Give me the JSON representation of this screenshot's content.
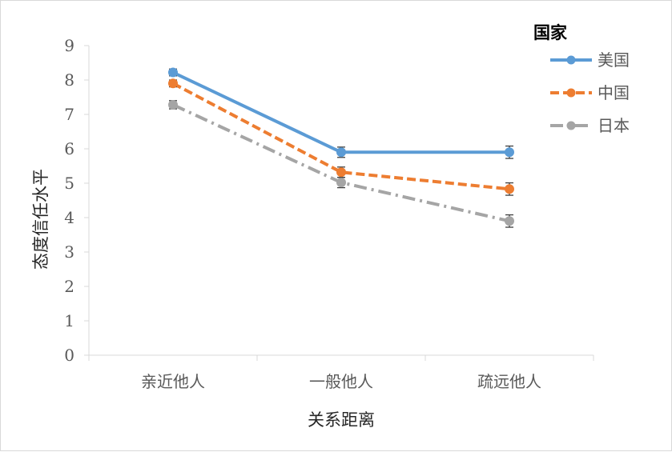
{
  "chart_data": {
    "type": "line",
    "categories": [
      "亲近他人",
      "一般他人",
      "疏远他人"
    ],
    "series": [
      {
        "name": "美国",
        "values": [
          8.22,
          5.9,
          5.9
        ],
        "errors": [
          0.1,
          0.15,
          0.18
        ],
        "color": "#5b9bd5",
        "dash": "solid"
      },
      {
        "name": "中国",
        "values": [
          7.9,
          5.32,
          4.83
        ],
        "errors": [
          0.1,
          0.15,
          0.18
        ],
        "color": "#ed7d31",
        "dash": "dashed"
      },
      {
        "name": "日本",
        "values": [
          7.28,
          5.02,
          3.9
        ],
        "errors": [
          0.12,
          0.15,
          0.18
        ],
        "color": "#a5a5a5",
        "dash": "dash-dot"
      }
    ],
    "xlabel": "关系距离",
    "ylabel": "态度信任水平",
    "ylim": [
      0,
      9
    ],
    "yticks": [
      "0",
      "1",
      "2",
      "3",
      "4",
      "5",
      "6",
      "7",
      "8",
      "9"
    ],
    "legend": {
      "title": "国家",
      "position": "top-right"
    },
    "grid": false
  }
}
